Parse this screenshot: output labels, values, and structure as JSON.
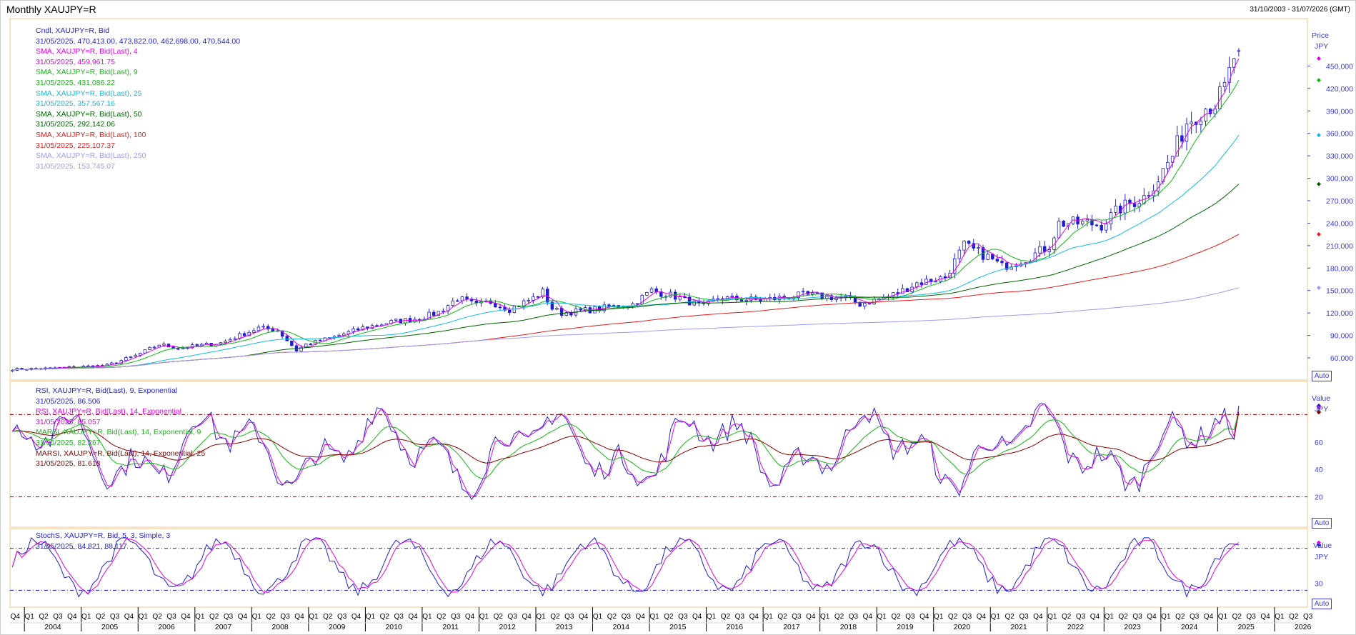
{
  "window": {
    "title": "Monthly XAUJPY=R",
    "date_range": "31/10/2003 - 31/07/2026 (GMT)"
  },
  "panels": {
    "price": {
      "axis_title": "Price",
      "axis_unit": "JPY",
      "auto_label": "Auto",
      "legend": [
        {
          "text": "Cndl, XAUJPY=R, Bid",
          "color": "#1f1fcf"
        },
        {
          "text": "31/05/2025, 470,413.00, 473,822.00, 462,698.00, 470,544.00",
          "color": "#1f1fcf"
        },
        {
          "text": "SMA, XAUJPY=R, Bid(Last),  4",
          "color": "#e600e6"
        },
        {
          "text": "31/05/2025, 459,961.75",
          "color": "#e600e6"
        },
        {
          "text": "SMA, XAUJPY=R, Bid(Last),  9",
          "color": "#14b814"
        },
        {
          "text": "31/05/2025, 431,086.22",
          "color": "#14b814"
        },
        {
          "text": "SMA, XAUJPY=R, Bid(Last),  25",
          "color": "#11bde0"
        },
        {
          "text": "31/05/2025, 357,567.16",
          "color": "#11bde0"
        },
        {
          "text": "SMA, XAUJPY=R, Bid(Last),  50",
          "color": "#006400"
        },
        {
          "text": "31/05/2025, 292,142.06",
          "color": "#006400"
        },
        {
          "text": "SMA, XAUJPY=R, Bid(Last),  100",
          "color": "#e02020"
        },
        {
          "text": "31/05/2025, 225,107.37",
          "color": "#e02020"
        },
        {
          "text": "SMA, XAUJPY=R, Bid(Last),  250",
          "color": "#9c9cf0"
        },
        {
          "text": "31/05/2025, 153,745.07",
          "color": "#9c9cf0"
        }
      ]
    },
    "rsi": {
      "axis_title": "Value",
      "axis_unit": "JPY",
      "auto_label": "Auto",
      "legend": [
        {
          "text": "RSI, XAUJPY=R, Bid(Last),  9, Exponential",
          "color": "#1f1fcf"
        },
        {
          "text": "31/05/2025, 86.506",
          "color": "#1f1fcf"
        },
        {
          "text": "RSI, XAUJPY=R, Bid(Last),  14, Exponential",
          "color": "#e600e6"
        },
        {
          "text": "31/05/2025, 85.057",
          "color": "#e600e6"
        },
        {
          "text": "MARSI, XAUJPY=R, Bid(Last),  14, Exponential, 9",
          "color": "#14b814"
        },
        {
          "text": "31/05/2025, 82.267",
          "color": "#14b814"
        },
        {
          "text": "MARSI, XAUJPY=R, Bid(Last),  14, Exponential, 25",
          "color": "#8b0000"
        },
        {
          "text": "31/05/2025, 81.618",
          "color": "#8b0000"
        }
      ]
    },
    "stoch": {
      "axis_title": "Value",
      "axis_unit": "JPY",
      "auto_label": "Auto",
      "legend": [
        {
          "text": "StochS, XAUJPY=R, Bid,  5, 3, Simple, 3",
          "color": "#1f1fcf"
        },
        {
          "text": "31/05/2025, 84.821, 88.117",
          "color": "#1f1fcf"
        }
      ]
    }
  },
  "chart_data": [
    {
      "type": "candlestick",
      "title": "Monthly XAUJPY=R",
      "ylabel": "Price",
      "unit": "JPY",
      "ylim": [
        40000,
        500000
      ],
      "yticks": [
        60000,
        90000,
        120000,
        150000,
        180000,
        210000,
        240000,
        270000,
        300000,
        330000,
        360000,
        390000,
        420000,
        450000
      ],
      "grid": false,
      "years": [
        "2004",
        "2005",
        "2006",
        "2007",
        "2008",
        "2009",
        "2010",
        "2011",
        "2012",
        "2013",
        "2014",
        "2015",
        "2016",
        "2017",
        "2018",
        "2019",
        "2020",
        "2021",
        "2022",
        "2023",
        "2024",
        "2025",
        "2026"
      ],
      "quarter_labels": [
        "Q1",
        "Q2",
        "Q3",
        "Q4"
      ],
      "x_start": "2003-10",
      "x_end": "2026-07",
      "last_date": "2025-05",
      "close_anchors": [
        [
          "2003-11",
          45000
        ],
        [
          "2004-06",
          46000
        ],
        [
          "2005-06",
          50000
        ],
        [
          "2005-12",
          63000
        ],
        [
          "2006-05",
          78000
        ],
        [
          "2006-09",
          73000
        ],
        [
          "2007-06",
          80000
        ],
        [
          "2008-02",
          100000
        ],
        [
          "2008-06",
          97000
        ],
        [
          "2008-10",
          70000
        ],
        [
          "2008-12",
          78000
        ],
        [
          "2009-06",
          88000
        ],
        [
          "2009-12",
          100000
        ],
        [
          "2010-06",
          108000
        ],
        [
          "2010-12",
          113000
        ],
        [
          "2011-04",
          121000
        ],
        [
          "2011-08",
          140000
        ],
        [
          "2011-12",
          130000
        ],
        [
          "2012-03",
          135000
        ],
        [
          "2012-07",
          125000
        ],
        [
          "2012-12",
          140000
        ],
        [
          "2013-02",
          148000
        ],
        [
          "2013-04",
          126000
        ],
        [
          "2013-06",
          120000
        ],
        [
          "2014-01",
          125000
        ],
        [
          "2014-09",
          132000
        ],
        [
          "2015-01",
          150000
        ],
        [
          "2015-06",
          142000
        ],
        [
          "2015-12",
          128000
        ],
        [
          "2016-03",
          140000
        ],
        [
          "2016-12",
          137000
        ],
        [
          "2017-09",
          144000
        ],
        [
          "2018-06",
          140000
        ],
        [
          "2018-09",
          132000
        ],
        [
          "2019-03",
          142000
        ],
        [
          "2019-06",
          150000
        ],
        [
          "2019-09",
          160000
        ],
        [
          "2020-03",
          168000
        ],
        [
          "2020-07",
          210000
        ],
        [
          "2020-12",
          195000
        ],
        [
          "2021-03",
          182000
        ],
        [
          "2021-09",
          195000
        ],
        [
          "2022-01",
          210000
        ],
        [
          "2022-03",
          240000
        ],
        [
          "2022-09",
          240000
        ],
        [
          "2022-12",
          238000
        ],
        [
          "2023-04",
          260000
        ],
        [
          "2023-09",
          275000
        ],
        [
          "2023-12",
          300000
        ],
        [
          "2024-03",
          330000
        ],
        [
          "2024-06",
          375000
        ],
        [
          "2024-10",
          395000
        ],
        [
          "2024-12",
          400000
        ],
        [
          "2025-01",
          410000
        ],
        [
          "2025-02",
          420000
        ],
        [
          "2025-03",
          440000
        ],
        [
          "2025-04",
          462000
        ],
        [
          "2025-05",
          470544
        ]
      ],
      "latest_bar": {
        "date": "31/05/2025",
        "open": 470413,
        "high": 473822,
        "low": 462698,
        "close": 470544
      },
      "series": [
        {
          "name": "Cndl, XAUJPY=R, Bid",
          "color": "#1f1fcf"
        },
        {
          "name": "SMA 4",
          "period": 4,
          "color": "#e600e6",
          "last": 459961.75
        },
        {
          "name": "SMA 9",
          "period": 9,
          "color": "#14b814",
          "last": 431086.22
        },
        {
          "name": "SMA 25",
          "period": 25,
          "color": "#11bde0",
          "last": 357567.16
        },
        {
          "name": "SMA 50",
          "period": 50,
          "color": "#006400",
          "last": 292142.06
        },
        {
          "name": "SMA 100",
          "period": 100,
          "color": "#e02020",
          "last": 225107.37
        },
        {
          "name": "SMA 250",
          "period": 250,
          "color": "#9c9cf0",
          "last": 153745.07
        }
      ]
    },
    {
      "type": "line",
      "title": "RSI",
      "ylabel": "Value",
      "unit": "JPY",
      "ylim": [
        0,
        100
      ],
      "yticks": [
        20,
        40,
        60
      ],
      "reference_lines": [
        80,
        20
      ],
      "series": [
        {
          "name": "RSI 9 Exponential",
          "color": "#1f1fcf",
          "last": 86.506
        },
        {
          "name": "RSI 14 Exponential",
          "color": "#e600e6",
          "last": 85.057
        },
        {
          "name": "MARSI 14 Exponential 9",
          "color": "#14b814",
          "last": 82.267
        },
        {
          "name": "MARSI 14 Exponential 25",
          "color": "#8b0000",
          "last": 81.618
        }
      ]
    },
    {
      "type": "line",
      "title": "StochS",
      "ylabel": "Value",
      "unit": "JPY",
      "ylim": [
        0,
        100
      ],
      "yticks": [
        30
      ],
      "reference_lines": [
        80,
        20
      ],
      "series": [
        {
          "name": "StochS %K",
          "color": "#1f1fcf",
          "last": 84.821
        },
        {
          "name": "StochS %D",
          "color": "#e600e6",
          "last": 88.117
        }
      ]
    }
  ]
}
